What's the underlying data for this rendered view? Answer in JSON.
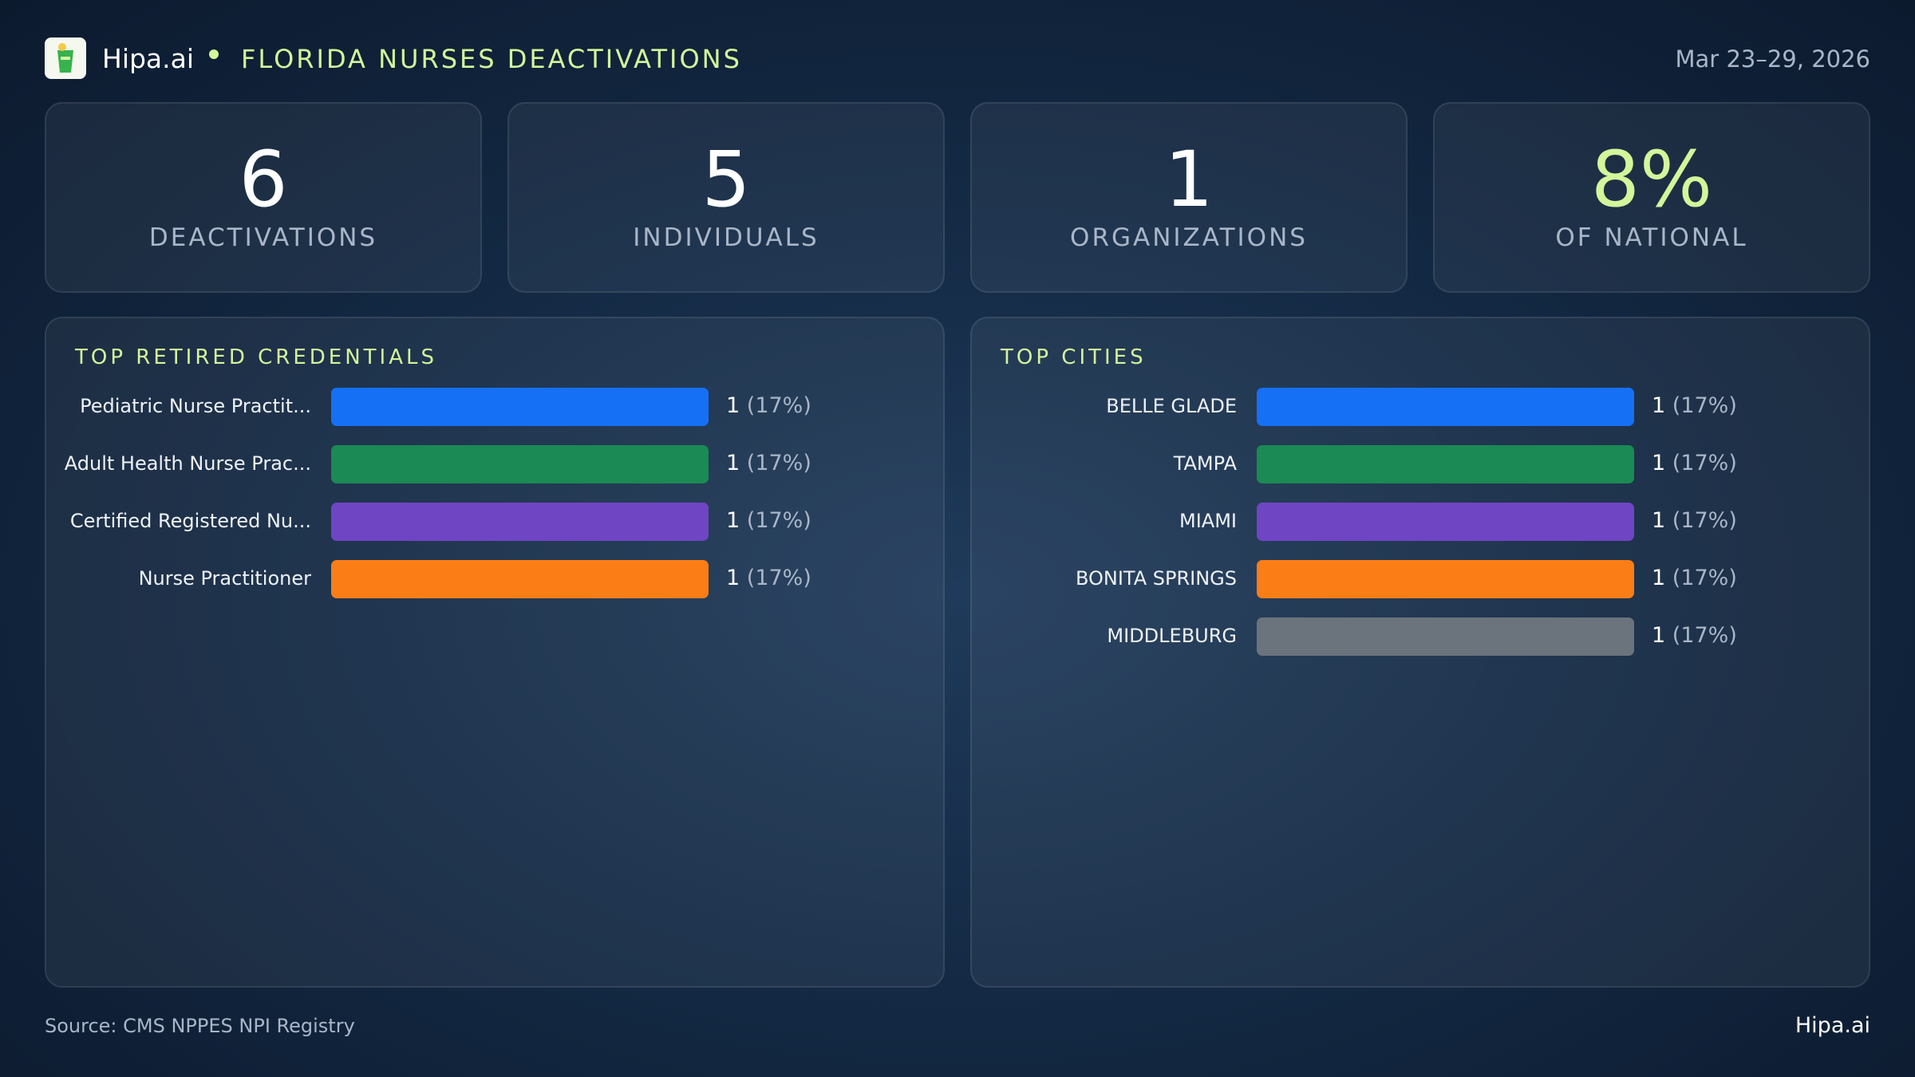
{
  "header": {
    "brand": "Hipa.ai",
    "title": "FLORIDA NURSES DEACTIVATIONS",
    "date": "Mar 23–29, 2026"
  },
  "stats": [
    {
      "value": 6,
      "caption": "DEACTIVATIONS"
    },
    {
      "value": 5,
      "caption": "INDIVIDUALS"
    },
    {
      "value": 1,
      "caption": "ORGANIZATIONS"
    },
    {
      "value": 8,
      "value_label": "8%",
      "caption": "OF NATIONAL"
    }
  ],
  "chart_data": [
    {
      "type": "bar",
      "orientation": "horizontal",
      "title": "TOP RETIRED CREDENTIALS",
      "categories": [
        "Pediatric Nurse Practit...",
        "Adult Health Nurse Prac...",
        "Certified Registered Nu...",
        "Nurse Practitioner"
      ],
      "values": [
        1,
        1,
        1,
        1
      ],
      "percents": [
        17,
        17,
        17,
        17
      ],
      "percent_labels": [
        "(17%)",
        "(17%)",
        "(17%)",
        "(17%)"
      ],
      "colors": [
        "#1570f5",
        "#1b8a54",
        "#6f45c4",
        "#fb7d16"
      ],
      "xlim": [
        0,
        1
      ]
    },
    {
      "type": "bar",
      "orientation": "horizontal",
      "title": "TOP CITIES",
      "categories": [
        "BELLE GLADE",
        "TAMPA",
        "MIAMI",
        "BONITA SPRINGS",
        "MIDDLEBURG"
      ],
      "values": [
        1,
        1,
        1,
        1,
        1
      ],
      "percents": [
        17,
        17,
        17,
        17,
        17
      ],
      "percent_labels": [
        "(17%)",
        "(17%)",
        "(17%)",
        "(17%)",
        "(17%)"
      ],
      "colors": [
        "#1570f5",
        "#1b8a54",
        "#6f45c4",
        "#fb7d16",
        "#6b737d"
      ],
      "xlim": [
        0,
        1
      ]
    }
  ],
  "footer": {
    "source": "Source: CMS NPPES NPI Registry",
    "brand": "Hipa.ai"
  }
}
